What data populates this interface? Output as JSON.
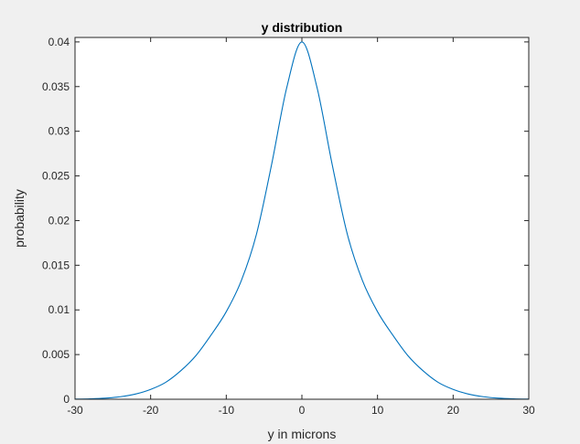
{
  "chart_data": {
    "type": "line",
    "title": "y distribution",
    "xlabel": "y in microns",
    "ylabel": "probability",
    "xlim": [
      -30,
      30
    ],
    "ylim": [
      0,
      0.0405
    ],
    "xticks": [
      "-30",
      "-20",
      "-10",
      "0",
      "10",
      "20",
      "30"
    ],
    "yticks": [
      "0",
      "0.005",
      "0.01",
      "0.015",
      "0.02",
      "0.025",
      "0.03",
      "0.035",
      "0.04"
    ],
    "grid": false,
    "legend": "none",
    "line_color": "#0072bd",
    "series": [
      {
        "x": [
          -30,
          -28,
          -26,
          -24,
          -22,
          -20,
          -18,
          -16,
          -14,
          -12,
          -10,
          -8,
          -6,
          -4,
          -2,
          0,
          2,
          4,
          6,
          8,
          10,
          12,
          14,
          16,
          18,
          20,
          22,
          24,
          26,
          28,
          30
        ],
        "values": [
          2e-05,
          5e-05,
          0.00012,
          0.00028,
          0.00058,
          0.0011,
          0.0019,
          0.0032,
          0.0049,
          0.0072,
          0.0098,
          0.0133,
          0.0185,
          0.0263,
          0.0349,
          0.04,
          0.0349,
          0.0263,
          0.0185,
          0.0133,
          0.0098,
          0.0072,
          0.0049,
          0.0032,
          0.0019,
          0.0011,
          0.00058,
          0.00028,
          0.00012,
          5e-05,
          2e-05
        ]
      }
    ]
  }
}
